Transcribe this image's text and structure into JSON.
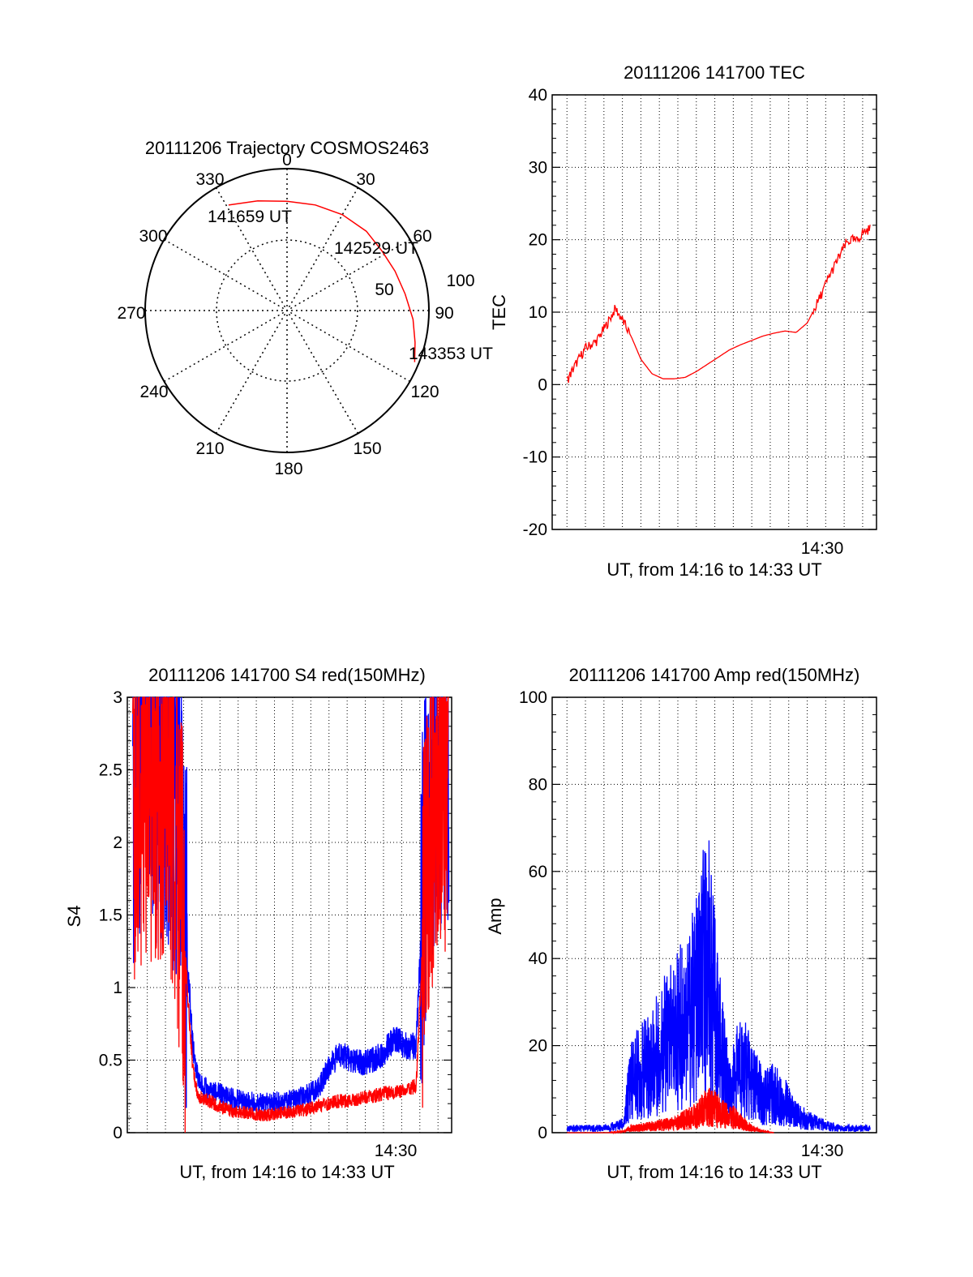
{
  "chart_data": [
    {
      "type": "polar",
      "title": "20111206 Trajectory COSMOS2463",
      "azimuth_labels": [
        "0",
        "30",
        "60",
        "90",
        "120",
        "150",
        "180",
        "210",
        "240",
        "270",
        "300",
        "330"
      ],
      "radius_labels": [
        "50",
        "100"
      ],
      "trajectory_labels": [
        "141659 UT",
        "142529 UT",
        "143353 UT"
      ],
      "points": [
        {
          "az": 331,
          "r": 85
        },
        {
          "az": 345,
          "r": 80
        },
        {
          "az": 0,
          "r": 77
        },
        {
          "az": 15,
          "r": 77
        },
        {
          "az": 30,
          "r": 78
        },
        {
          "az": 45,
          "r": 79
        },
        {
          "az": 58,
          "r": 79
        },
        {
          "az": 70,
          "r": 81
        },
        {
          "az": 82,
          "r": 84
        },
        {
          "az": 94,
          "r": 89
        },
        {
          "az": 104,
          "r": 93
        },
        {
          "az": 112,
          "r": 97
        }
      ],
      "colors": {
        "trajectory": "#ff0000"
      }
    },
    {
      "type": "line",
      "title": "20111206 141700 TEC",
      "xlabel": "UT, from 14:16 to 14:33 UT",
      "ylabel": "TEC",
      "xlim": [
        14.27,
        14.5625
      ],
      "ylim": [
        -20,
        40
      ],
      "yticks": [
        -20,
        -10,
        0,
        10,
        20,
        30,
        40
      ],
      "xtick_label": "14:30",
      "series": [
        {
          "color": "#ff0000",
          "x": [
            14.2833,
            14.29,
            14.3,
            14.31,
            14.32,
            14.327,
            14.333,
            14.3417,
            14.35,
            14.36,
            14.37,
            14.38,
            14.39,
            14.4,
            14.41,
            14.42,
            14.43,
            14.44,
            14.45,
            14.46,
            14.47,
            14.48,
            14.49,
            14.5,
            14.51,
            14.52,
            14.53,
            14.535,
            14.54,
            14.545,
            14.55,
            14.5567
          ],
          "y": [
            0.5,
            2.5,
            5.0,
            6.0,
            8.5,
            10.5,
            9.0,
            6.5,
            3.5,
            1.5,
            0.8,
            0.8,
            1.0,
            1.8,
            2.8,
            3.8,
            4.8,
            5.5,
            6.1,
            6.7,
            7.1,
            7.4,
            7.2,
            8.5,
            11.5,
            15.0,
            18.0,
            19.5,
            20.0,
            19.8,
            21.0,
            21.5
          ]
        }
      ]
    },
    {
      "type": "line",
      "title": "20111206 141700 S4 red(150MHz)",
      "xlabel": "UT, from 14:16 to 14:33 UT",
      "ylabel": "S4",
      "xlim": [
        14.265,
        14.5625
      ],
      "ylim": [
        0,
        3
      ],
      "yticks": [
        0,
        0.5,
        1,
        1.5,
        2,
        2.5,
        3
      ],
      "ytick_labels": [
        "0",
        "0.5",
        "1",
        "1.5",
        "2",
        "2.5",
        "3"
      ],
      "xtick_label": "14:30",
      "series": [
        {
          "color": "#0000ff",
          "x": [
            14.27,
            14.28,
            14.29,
            14.3,
            14.31,
            14.315,
            14.32,
            14.325,
            14.33,
            14.34,
            14.35,
            14.36,
            14.37,
            14.38,
            14.39,
            14.4,
            14.41,
            14.42,
            14.43,
            14.44,
            14.45,
            14.46,
            14.47,
            14.48,
            14.49,
            14.5,
            14.51,
            14.52,
            14.53,
            14.54,
            14.55,
            14.56
          ],
          "y": [
            2.4,
            2.7,
            2.5,
            2.6,
            2.3,
            1.8,
            1.2,
            0.6,
            0.35,
            0.28,
            0.27,
            0.24,
            0.22,
            0.21,
            0.2,
            0.21,
            0.22,
            0.23,
            0.26,
            0.3,
            0.45,
            0.55,
            0.5,
            0.48,
            0.5,
            0.55,
            0.65,
            0.6,
            0.6,
            2.2,
            2.7,
            2.6
          ]
        },
        {
          "color": "#ff0000",
          "x": [
            14.27,
            14.28,
            14.29,
            14.3,
            14.31,
            14.315,
            14.32,
            14.325,
            14.33,
            14.34,
            14.35,
            14.36,
            14.37,
            14.38,
            14.39,
            14.4,
            14.41,
            14.42,
            14.43,
            14.44,
            14.45,
            14.46,
            14.47,
            14.48,
            14.49,
            14.5,
            14.51,
            14.52,
            14.53,
            14.54,
            14.55,
            14.56
          ],
          "y": [
            2.2,
            2.5,
            2.4,
            2.5,
            2.1,
            1.6,
            1.0,
            0.45,
            0.25,
            0.22,
            0.18,
            0.15,
            0.14,
            0.13,
            0.12,
            0.13,
            0.14,
            0.15,
            0.16,
            0.18,
            0.2,
            0.22,
            0.22,
            0.24,
            0.25,
            0.27,
            0.28,
            0.3,
            0.32,
            2.0,
            2.6,
            2.5
          ]
        }
      ]
    },
    {
      "type": "line",
      "title": "20111206 141700 Amp red(150MHz)",
      "xlabel": "UT, from 14:16 to 14:33 UT",
      "ylabel": "Amp",
      "xlim": [
        14.27,
        14.5625
      ],
      "ylim": [
        0,
        100
      ],
      "yticks": [
        0,
        20,
        40,
        60,
        80,
        100
      ],
      "xtick_label": "14:30",
      "series": [
        {
          "color": "#0000ff",
          "x": [
            14.2833,
            14.3,
            14.32,
            14.335,
            14.34,
            14.35,
            14.36,
            14.37,
            14.38,
            14.39,
            14.4,
            14.41,
            14.42,
            14.43,
            14.44,
            14.45,
            14.46,
            14.47,
            14.48,
            14.49,
            14.5,
            14.51,
            14.52,
            14.53,
            14.54,
            14.55,
            14.5567
          ],
          "y": [
            1,
            1,
            1,
            2,
            12,
            14,
            16,
            20,
            22,
            26,
            30,
            40,
            22,
            9,
            16,
            12,
            8,
            9,
            7,
            4,
            3,
            2,
            1.5,
            1,
            1,
            1,
            1
          ]
        },
        {
          "color": "#ff0000",
          "x": [
            14.2833,
            14.3,
            14.32,
            14.335,
            14.34,
            14.35,
            14.36,
            14.37,
            14.38,
            14.39,
            14.4,
            14.41,
            14.42,
            14.43,
            14.44,
            14.45,
            14.46,
            14.47
          ],
          "y": [
            0,
            0,
            0,
            0.3,
            1,
            1.2,
            1.5,
            1.8,
            2,
            3,
            4,
            6,
            5,
            4,
            2.5,
            1,
            0.3,
            0
          ]
        }
      ]
    }
  ]
}
